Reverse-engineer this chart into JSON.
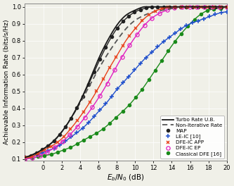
{
  "xlabel": "E₇/N₀ (dB)",
  "ylabel": "Achievable Information Rate (bits/s/Hz)",
  "xlim": [
    -2,
    20
  ],
  "ylim": [
    0.09,
    1.02
  ],
  "yticks": [
    0.1,
    0.2,
    0.3,
    0.4,
    0.5,
    0.6,
    0.7,
    0.8,
    0.9,
    1.0
  ],
  "xticks": [
    0,
    2,
    4,
    6,
    8,
    10,
    12,
    14,
    16,
    18,
    20
  ],
  "snr": [
    -2,
    -1,
    0,
    1,
    2,
    3,
    4,
    5,
    6,
    7,
    8,
    9,
    10,
    11,
    12,
    13,
    14,
    15,
    16,
    17,
    18,
    19,
    20
  ],
  "turbo_ub": [
    0.11,
    0.13,
    0.16,
    0.2,
    0.26,
    0.34,
    0.44,
    0.56,
    0.69,
    0.8,
    0.89,
    0.95,
    0.98,
    1.0,
    1.0,
    1.0,
    1.0,
    1.0,
    1.0,
    1.0,
    1.0,
    1.0,
    1.0
  ],
  "non_iter": [
    0.11,
    0.13,
    0.16,
    0.2,
    0.26,
    0.34,
    0.43,
    0.53,
    0.63,
    0.72,
    0.8,
    0.87,
    0.92,
    0.95,
    0.97,
    0.98,
    0.99,
    1.0,
    1.0,
    1.0,
    1.0,
    1.0,
    1.0
  ],
  "map": [
    0.11,
    0.13,
    0.16,
    0.2,
    0.26,
    0.34,
    0.44,
    0.55,
    0.67,
    0.78,
    0.87,
    0.93,
    0.97,
    0.99,
    1.0,
    1.0,
    1.0,
    1.0,
    1.0,
    1.0,
    1.0,
    1.0,
    1.0
  ],
  "le_ic": [
    0.11,
    0.12,
    0.14,
    0.16,
    0.19,
    0.23,
    0.27,
    0.32,
    0.38,
    0.44,
    0.51,
    0.57,
    0.63,
    0.69,
    0.74,
    0.79,
    0.83,
    0.87,
    0.9,
    0.92,
    0.94,
    0.96,
    0.97
  ],
  "dfe_ic_app": [
    0.11,
    0.12,
    0.15,
    0.18,
    0.22,
    0.28,
    0.35,
    0.43,
    0.52,
    0.62,
    0.71,
    0.8,
    0.87,
    0.93,
    0.97,
    0.99,
    1.0,
    1.0,
    1.0,
    1.0,
    1.0,
    1.0,
    1.0
  ],
  "dfe_ic_ep": [
    0.1,
    0.11,
    0.13,
    0.16,
    0.2,
    0.25,
    0.31,
    0.38,
    0.46,
    0.55,
    0.65,
    0.74,
    0.82,
    0.89,
    0.94,
    0.97,
    0.99,
    1.0,
    1.0,
    1.0,
    1.0,
    1.0,
    1.0
  ],
  "classical_dfe": [
    0.1,
    0.11,
    0.12,
    0.13,
    0.15,
    0.17,
    0.2,
    0.23,
    0.26,
    0.3,
    0.35,
    0.4,
    0.46,
    0.53,
    0.61,
    0.69,
    0.77,
    0.84,
    0.9,
    0.95,
    0.98,
    0.99,
    1.0
  ],
  "bg_color": "#f0f0e8",
  "grid_color": "#ffffff",
  "colors": {
    "turbo_ub": "#1a1a1a",
    "non_iter": "#555555",
    "map": "#222222",
    "le_ic": "#1f4fcc",
    "dfe_ic_app": "#e8401a",
    "dfe_ic_ep": "#e020c0",
    "classical_dfe": "#1a8a1a"
  },
  "legend_labels": {
    "turbo_ub": "Turbo Rate U.B.",
    "non_iter": "Non-Iterative Rate",
    "map": "MAP",
    "le_ic": "LE-IC [10]",
    "dfe_ic_app": "DFE-IC APP",
    "dfe_ic_ep": "DFE-IC EP",
    "classical_dfe": "Classical DFE [16]"
  }
}
